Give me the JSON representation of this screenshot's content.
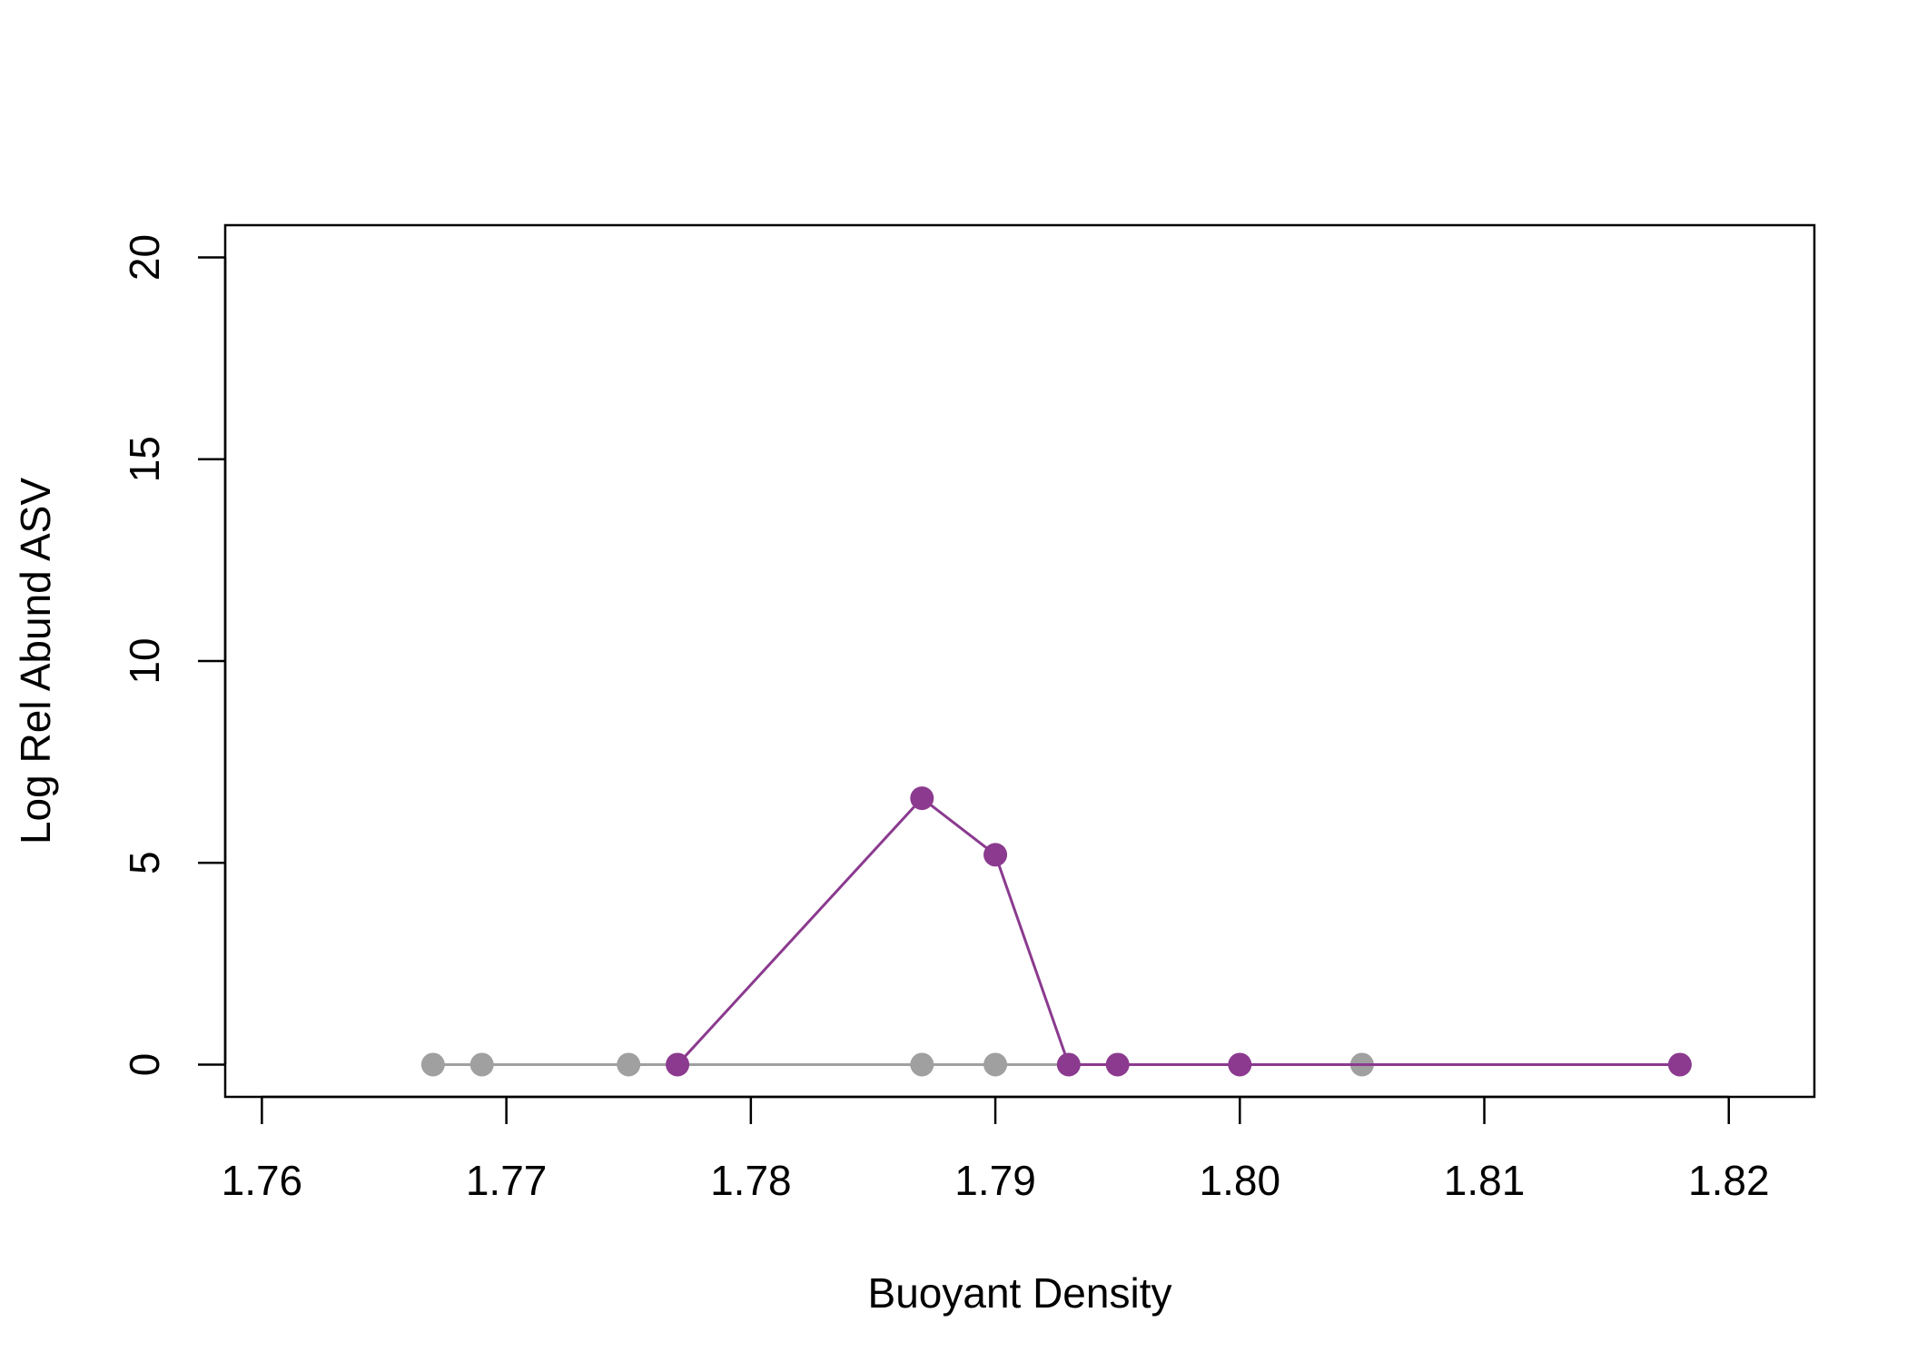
{
  "chart_data": {
    "type": "line",
    "title": "",
    "xlabel": "Buoyant Density",
    "ylabel": "Log Rel Abund ASV",
    "xlim": [
      1.7585,
      1.8235
    ],
    "ylim": [
      -0.8,
      20.8
    ],
    "x_ticks": [
      1.76,
      1.77,
      1.78,
      1.79,
      1.8,
      1.81,
      1.82
    ],
    "x_tick_labels": [
      "1.76",
      "1.77",
      "1.78",
      "1.79",
      "1.80",
      "1.81",
      "1.82"
    ],
    "y_ticks": [
      0,
      5,
      10,
      15,
      20
    ],
    "y_tick_labels": [
      "0",
      "5",
      "10",
      "15",
      "20"
    ],
    "grid": false,
    "legend": "none",
    "series": [
      {
        "color": "#a0a0a0",
        "x": [
          1.767,
          1.769,
          1.775,
          1.787,
          1.79,
          1.805
        ],
        "y": [
          0,
          0,
          0,
          0,
          0,
          0
        ]
      },
      {
        "color": "#8b3a8f",
        "x": [
          1.777,
          1.787,
          1.79,
          1.793,
          1.795,
          1.8,
          1.818
        ],
        "y": [
          0,
          6.6,
          5.2,
          0,
          0,
          0,
          0
        ]
      }
    ]
  }
}
